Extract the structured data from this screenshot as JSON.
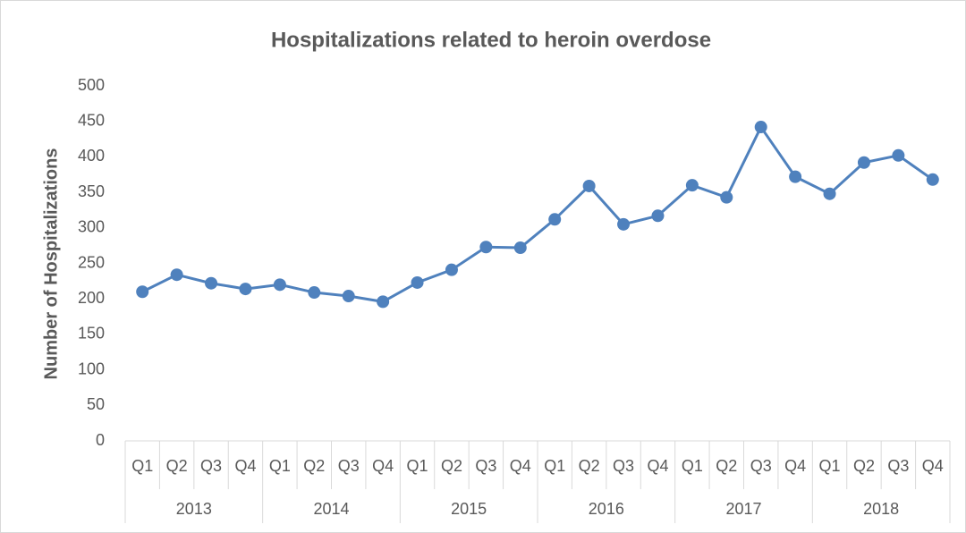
{
  "chart_data": {
    "type": "line",
    "title": "Hospitalizations related to heroin overdose",
    "y_label": "Number of Hospitalizations",
    "categories": [
      "Q1",
      "Q2",
      "Q3",
      "Q4",
      "Q1",
      "Q2",
      "Q3",
      "Q4",
      "Q1",
      "Q2",
      "Q3",
      "Q4",
      "Q1",
      "Q2",
      "Q3",
      "Q4",
      "Q1",
      "Q2",
      "Q3",
      "Q4",
      "Q1",
      "Q2",
      "Q3",
      "Q4"
    ],
    "category_groups": [
      "2013",
      "2014",
      "2015",
      "2016",
      "2017",
      "2018"
    ],
    "series": [
      {
        "name": "Hospitalizations",
        "color": "#4f81bd",
        "values": [
          210,
          234,
          222,
          214,
          220,
          209,
          204,
          196,
          223,
          241,
          273,
          272,
          312,
          359,
          305,
          317,
          360,
          343,
          442,
          372,
          348,
          392,
          402,
          368
        ]
      }
    ],
    "ylim": [
      0,
      500
    ],
    "yticks": [
      0,
      50,
      100,
      150,
      200,
      250,
      300,
      350,
      400,
      450,
      500
    ],
    "grid": false
  }
}
